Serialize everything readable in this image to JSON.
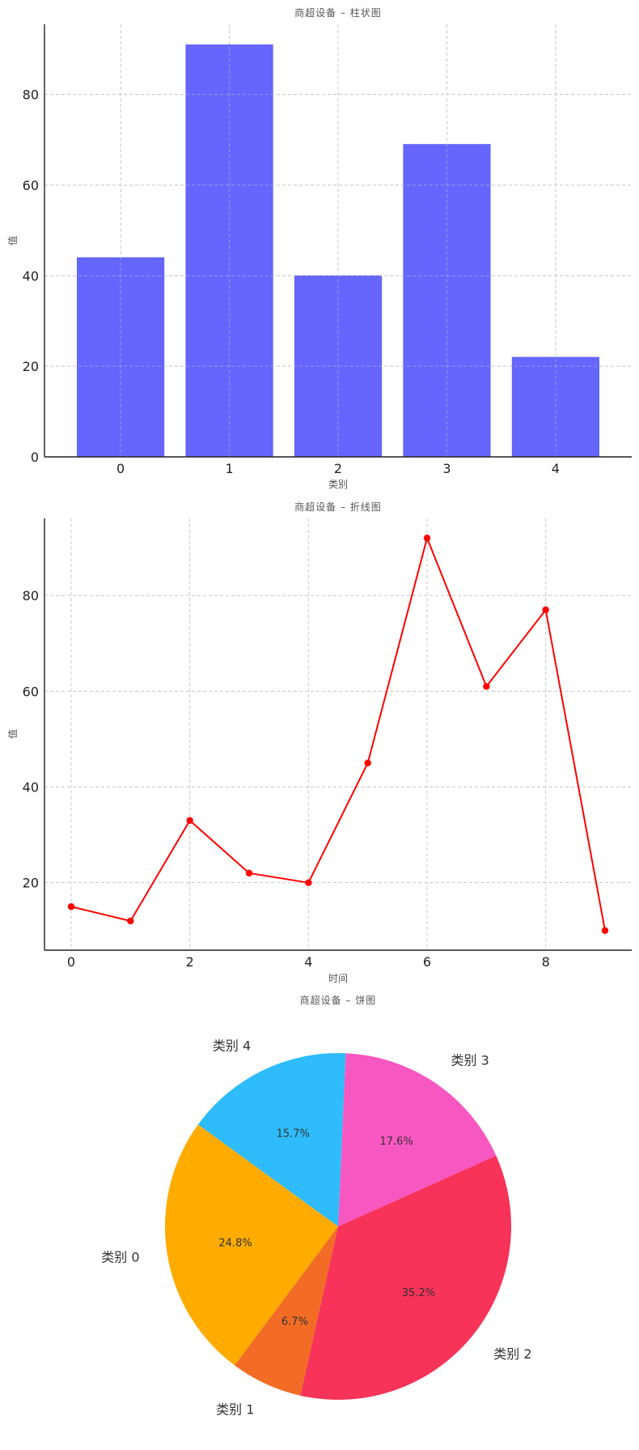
{
  "chart_data": [
    {
      "type": "bar",
      "title": "商超设备 – 柱状图",
      "xlabel": "类别",
      "ylabel": "值",
      "categories": [
        "0",
        "1",
        "2",
        "3",
        "4"
      ],
      "values": [
        44,
        91,
        40,
        69,
        22
      ],
      "ylim": [
        0,
        95.5
      ],
      "yticks": [
        "0",
        "20",
        "40",
        "60",
        "80"
      ],
      "color": "#6666ff",
      "grid": true
    },
    {
      "type": "line",
      "title": "商超设备 – 折线图",
      "xlabel": "时间",
      "ylabel": "值",
      "x": [
        0,
        1,
        2,
        3,
        4,
        5,
        6,
        7,
        8,
        9
      ],
      "values": [
        15,
        12,
        33,
        22,
        20,
        45,
        92,
        61,
        77,
        10
      ],
      "xlim": [
        -0.45,
        9.45
      ],
      "ylim": [
        5.9,
        96.1
      ],
      "xticks": [
        "0",
        "2",
        "4",
        "6",
        "8"
      ],
      "yticks": [
        "20",
        "40",
        "60",
        "80"
      ],
      "color": "#ff0000",
      "grid": true
    },
    {
      "type": "pie",
      "title": "商超设备 – 饼图",
      "labels": [
        "类别 0",
        "类别 1",
        "类别 2",
        "类别 3",
        "类别 4"
      ],
      "values": [
        24.8,
        6.7,
        35.2,
        17.6,
        15.7
      ],
      "pct_labels": [
        "24.8%",
        "6.7%",
        "35.2%",
        "17.6%",
        "15.7%"
      ],
      "colors": [
        "#ffab00",
        "#f26c26",
        "#f73359",
        "#f757c0",
        "#2ebcfc"
      ],
      "startangle_deg": 144
    }
  ]
}
